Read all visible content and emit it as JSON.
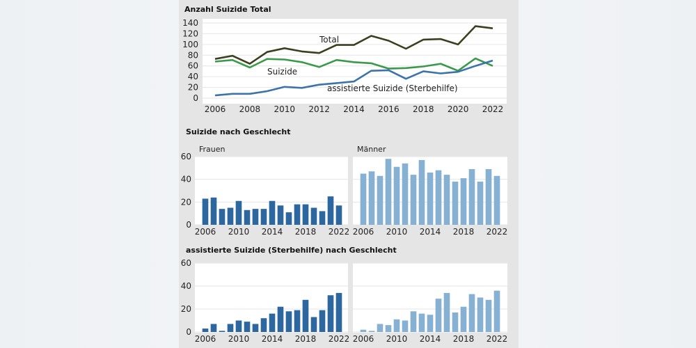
{
  "colors": {
    "total": "#3a3f1f",
    "suizide": "#3a9a4a",
    "assistiert": "#3b73aa",
    "frauen": "#2d67a0",
    "maenner": "#86b1d3",
    "panel_bg": "#ffffff",
    "figure_bg": "#e5e5e5",
    "grid": "#e6e6e6"
  },
  "chart_data": [
    {
      "id": "top",
      "type": "line",
      "title": "Anzahl Suizide Total",
      "x": [
        2006,
        2007,
        2008,
        2009,
        2010,
        2011,
        2012,
        2013,
        2014,
        2015,
        2016,
        2017,
        2018,
        2019,
        2020,
        2021,
        2022
      ],
      "xticks": [
        "2006",
        "2008",
        "2010",
        "2012",
        "2014",
        "2016",
        "2018",
        "2020",
        "2022"
      ],
      "yticks": [
        "0",
        "20",
        "40",
        "60",
        "80",
        "100",
        "120",
        "140"
      ],
      "ylim": [
        0,
        140
      ],
      "grid": true,
      "series": [
        {
          "name": "Total",
          "key": "total",
          "values": [
            73,
            79,
            64,
            86,
            93,
            87,
            84,
            99,
            99,
            116,
            107,
            92,
            109,
            110,
            100,
            134,
            130
          ]
        },
        {
          "name": "Suizide",
          "key": "suizide",
          "values": [
            68,
            71,
            57,
            73,
            72,
            67,
            58,
            71,
            67,
            65,
            55,
            56,
            59,
            64,
            51,
            74,
            60
          ]
        },
        {
          "name": "assistierte Suizide (Sterbehilfe)",
          "key": "assistiert",
          "values": [
            5,
            8,
            8,
            13,
            21,
            19,
            25,
            28,
            31,
            51,
            52,
            36,
            50,
            46,
            49,
            60,
            70
          ]
        }
      ]
    },
    {
      "id": "mid",
      "type": "bar",
      "title": "Suizide nach Geschlecht",
      "x": [
        2006,
        2007,
        2008,
        2009,
        2010,
        2011,
        2012,
        2013,
        2014,
        2015,
        2016,
        2017,
        2018,
        2019,
        2020,
        2021,
        2022
      ],
      "xticks": [
        "2006",
        "2010",
        "2014",
        "2018",
        "2022"
      ],
      "yticks": [
        "0",
        "20",
        "40",
        "60"
      ],
      "ylim": [
        0,
        60
      ],
      "grid": true,
      "series": [
        {
          "name": "Frauen",
          "key": "frauen",
          "values": [
            23,
            24,
            14,
            15,
            21,
            13,
            14,
            14,
            21,
            17,
            11,
            18,
            18,
            15,
            12,
            25,
            17
          ]
        },
        {
          "name": "Männer",
          "key": "maenner",
          "values": [
            45,
            47,
            43,
            58,
            51,
            54,
            44,
            57,
            46,
            48,
            44,
            38,
            41,
            49,
            38,
            49,
            43
          ]
        }
      ]
    },
    {
      "id": "bot",
      "type": "bar",
      "title": "assistierte Suizide (Sterbehilfe) nach Geschlecht",
      "x": [
        2006,
        2007,
        2008,
        2009,
        2010,
        2011,
        2012,
        2013,
        2014,
        2015,
        2016,
        2017,
        2018,
        2019,
        2020,
        2021,
        2022
      ],
      "xticks": [
        "2006",
        "2010",
        "2014",
        "2018",
        "2022"
      ],
      "yticks": [
        "0",
        "20",
        "40",
        "60"
      ],
      "ylim": [
        0,
        60
      ],
      "grid": true,
      "series": [
        {
          "name": "",
          "key": "frauen",
          "values": [
            3,
            7,
            1,
            7,
            10,
            9,
            7,
            12,
            16,
            22,
            18,
            19,
            28,
            13,
            19,
            32,
            34
          ]
        },
        {
          "name": "",
          "key": "maenner",
          "values": [
            2,
            1,
            7,
            6,
            11,
            10,
            18,
            16,
            15,
            29,
            34,
            17,
            22,
            33,
            30,
            28,
            36
          ]
        }
      ]
    }
  ]
}
